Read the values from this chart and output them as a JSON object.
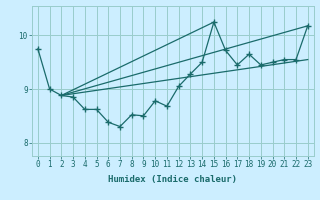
{
  "title": "",
  "xlabel": "Humidex (Indice chaleur)",
  "ylabel": "",
  "background_color": "#cceeff",
  "line_color": "#1a6b6b",
  "grid_color": "#99cccc",
  "xlim": [
    -0.5,
    23.5
  ],
  "ylim": [
    7.75,
    10.55
  ],
  "yticks": [
    8,
    9,
    10
  ],
  "xticks": [
    0,
    1,
    2,
    3,
    4,
    5,
    6,
    7,
    8,
    9,
    10,
    11,
    12,
    13,
    14,
    15,
    16,
    17,
    18,
    19,
    20,
    21,
    22,
    23
  ],
  "series1_x": [
    0,
    1,
    2,
    3,
    4,
    5,
    6,
    7,
    8,
    9,
    10,
    11,
    12,
    13,
    14,
    15,
    16,
    17,
    18,
    19,
    20,
    21,
    22,
    23
  ],
  "series1_y": [
    9.75,
    9.0,
    8.88,
    8.85,
    8.62,
    8.62,
    8.38,
    8.3,
    8.52,
    8.5,
    8.78,
    8.68,
    9.05,
    9.28,
    9.5,
    10.25,
    9.72,
    9.45,
    9.65,
    9.45,
    9.5,
    9.55,
    9.55,
    10.18
  ],
  "series2_x": [
    2,
    23
  ],
  "series2_y": [
    8.88,
    10.18
  ],
  "series3_x": [
    2,
    15
  ],
  "series3_y": [
    8.88,
    10.25
  ],
  "series4_x": [
    2,
    23
  ],
  "series4_y": [
    8.88,
    9.55
  ]
}
